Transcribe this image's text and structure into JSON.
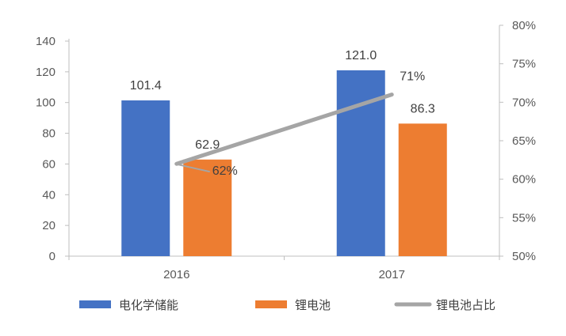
{
  "chart_data": {
    "type": "bar",
    "categories": [
      "2016",
      "2017"
    ],
    "series": [
      {
        "name": "电化学储能",
        "type": "bar",
        "axis": "left",
        "color": "#4472C4",
        "values": [
          101.4,
          121.0
        ],
        "labels": [
          "101.4",
          "121.0"
        ]
      },
      {
        "name": "锂电池",
        "type": "bar",
        "axis": "left",
        "color": "#ED7D31",
        "values": [
          62.9,
          86.3
        ],
        "labels": [
          "62.9",
          "86.3"
        ]
      },
      {
        "name": "锂电池占比",
        "type": "line",
        "axis": "right",
        "color": "#A5A5A5",
        "values": [
          62,
          71
        ],
        "labels": [
          "62%",
          "71%"
        ]
      }
    ],
    "y_left": {
      "min": 0,
      "max": 140,
      "ticks": [
        "0",
        "20",
        "40",
        "60",
        "80",
        "100",
        "120",
        "140"
      ]
    },
    "y_right": {
      "min": 50,
      "max": 80,
      "ticks": [
        "50%",
        "55%",
        "60%",
        "65%",
        "70%",
        "75%",
        "80%"
      ]
    },
    "title": "",
    "xlabel": "",
    "ylabel": "",
    "grid": false,
    "legend": "bottom"
  }
}
